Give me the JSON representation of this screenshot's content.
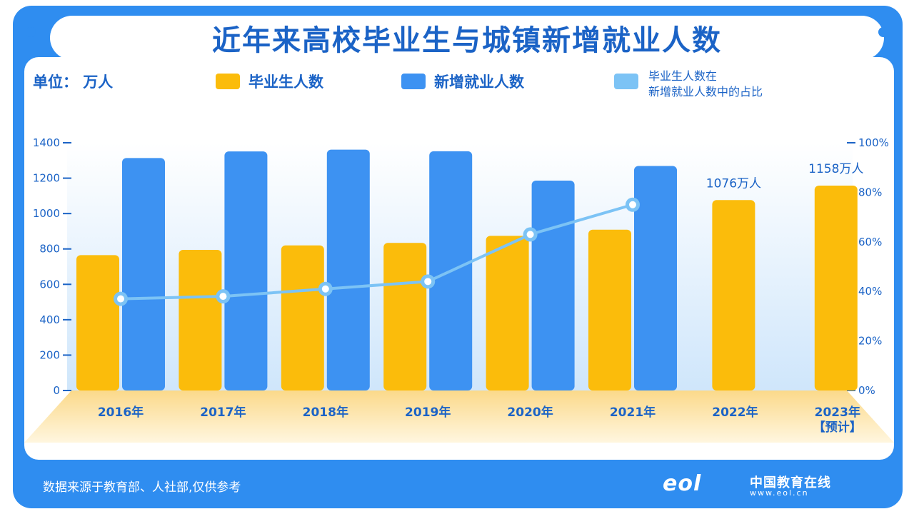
{
  "title": "近年来高校毕业生与城镇新增就业人数",
  "unit_label": "单位：  万人",
  "legend": {
    "graduates": "毕业生人数",
    "new_jobs": "新增就业人数",
    "ratio_line1": "毕业生人数在",
    "ratio_line2": "新增就业人数中的占比"
  },
  "footer": {
    "source": "数据来源于教育部、人社部,仅供参考",
    "logo_mark": "eol",
    "logo_name": "中国教育在线",
    "logo_url": "www.eol.cn"
  },
  "colors": {
    "graduates": "#fbbc0b",
    "new_jobs": "#3d92f2",
    "ratio": "#7cc3f5",
    "text": "#1b63c6"
  },
  "chart_data": {
    "type": "bar",
    "categories": [
      "2016年",
      "2017年",
      "2018年",
      "2019年",
      "2020年",
      "2021年",
      "2022年",
      "2023年"
    ],
    "category_notes": [
      "",
      "",
      "",
      "",
      "",
      "",
      "",
      "【预计】"
    ],
    "series": [
      {
        "name": "毕业生人数",
        "type": "bar",
        "axis": "left",
        "values": [
          765,
          795,
          820,
          834,
          874,
          909,
          1076,
          1158
        ]
      },
      {
        "name": "新增就业人数",
        "type": "bar",
        "axis": "left",
        "values": [
          1314,
          1351,
          1361,
          1352,
          1186,
          1269,
          null,
          null
        ]
      },
      {
        "name": "毕业生人数在新增就业人数中的占比",
        "type": "line",
        "axis": "right",
        "values": [
          37,
          38,
          41,
          44,
          63,
          75,
          null,
          null
        ]
      }
    ],
    "annotations": [
      {
        "category": "2022年",
        "text": "1076万人"
      },
      {
        "category": "2023年",
        "text": "1158万人"
      }
    ],
    "y_left": {
      "ticks": [
        "0",
        "200",
        "400",
        "600",
        "800",
        "1000",
        "1200",
        "1400"
      ],
      "range": [
        0,
        1400
      ]
    },
    "y_right": {
      "ticks": [
        "0%",
        "20%",
        "40%",
        "60%",
        "80%",
        "100%"
      ],
      "range": [
        0,
        100
      ]
    },
    "grid": false,
    "legend_position": "top"
  }
}
